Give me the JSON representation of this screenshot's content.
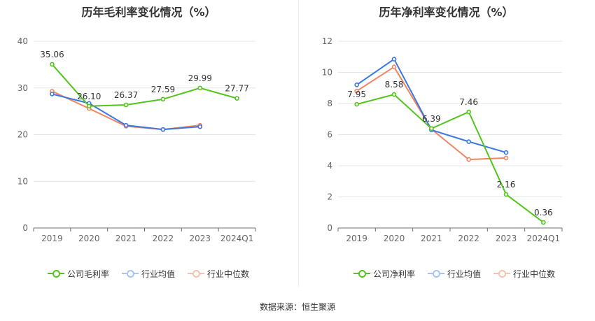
{
  "footer": {
    "source": "数据来源：恒生聚源"
  },
  "chart_data": [
    {
      "type": "line",
      "title": "历年毛利率变化情况（%）",
      "categories": [
        "2019",
        "2020",
        "2021",
        "2022",
        "2023",
        "2024Q1"
      ],
      "ylim": [
        0,
        40
      ],
      "yticks": [
        "0",
        "10",
        "20",
        "30",
        "40"
      ],
      "grid": true,
      "legend_position": "bottom",
      "series": [
        {
          "name": "公司毛利率",
          "color": "#52c41a",
          "values": [
            35.06,
            26.1,
            26.37,
            27.59,
            29.99,
            27.77
          ],
          "labels": [
            "35.06",
            "26.10",
            "26.37",
            "27.59",
            "29.99",
            "27.77"
          ]
        },
        {
          "name": "行业均值",
          "color": "#3a78e0",
          "values": [
            28.7,
            26.7,
            22.0,
            21.1,
            21.7,
            null
          ]
        },
        {
          "name": "行业中位数",
          "color": "#f0855f",
          "values": [
            29.3,
            25.6,
            21.8,
            21.1,
            22.0,
            null
          ]
        }
      ]
    },
    {
      "type": "line",
      "title": "历年净利率变化情况（%）",
      "categories": [
        "2019",
        "2020",
        "2021",
        "2022",
        "2023",
        "2024Q1"
      ],
      "ylim": [
        0,
        12
      ],
      "yticks": [
        "0",
        "2",
        "4",
        "6",
        "8",
        "10",
        "12"
      ],
      "grid": true,
      "legend_position": "bottom",
      "series": [
        {
          "name": "公司净利率",
          "color": "#52c41a",
          "values": [
            7.95,
            8.58,
            6.39,
            7.46,
            2.16,
            0.36
          ],
          "labels": [
            "7.95",
            "8.58",
            "6.39",
            "7.46",
            "2.16",
            "0.36"
          ]
        },
        {
          "name": "行业均值",
          "color": "#3a78e0",
          "values": [
            9.2,
            10.85,
            6.3,
            5.55,
            4.85,
            null
          ]
        },
        {
          "name": "行业中位数",
          "color": "#f0855f",
          "values": [
            8.8,
            10.35,
            6.35,
            4.4,
            4.5,
            null
          ]
        }
      ]
    }
  ]
}
